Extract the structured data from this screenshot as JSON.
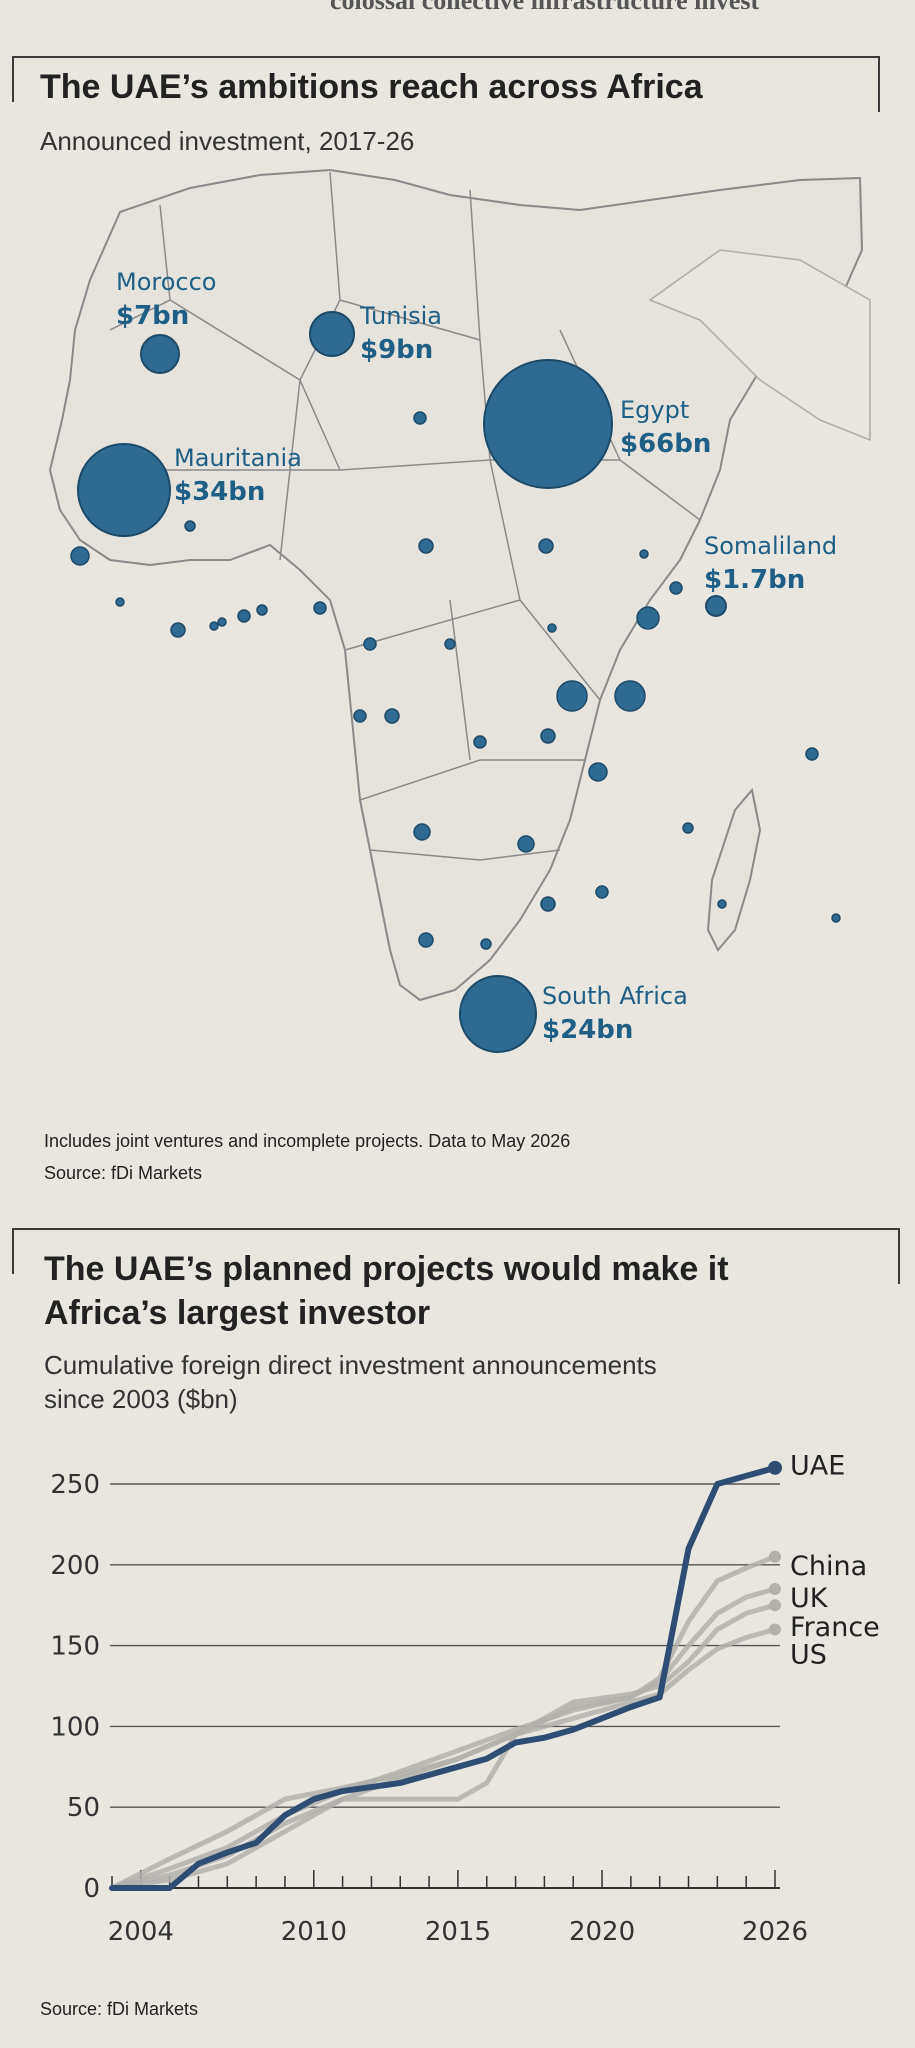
{
  "top_fragment": "colossal collective infrastructure invest",
  "map_chart": {
    "title": "The UAE’s ambitions reach across Africa",
    "subtitle": "Announced investment, 2017-26",
    "labelled_countries": [
      {
        "name": "Morocco",
        "amount": "$7bn",
        "value": 7
      },
      {
        "name": "Tunisia",
        "amount": "$9bn",
        "value": 9
      },
      {
        "name": "Mauritania",
        "amount": "$34bn",
        "value": 34
      },
      {
        "name": "Egypt",
        "amount": "$66bn",
        "value": 66
      },
      {
        "name": "Somaliland",
        "amount": "$1.7bn",
        "value": 1.7
      },
      {
        "name": "South Africa",
        "amount": "$24bn",
        "value": 24
      }
    ],
    "note": "Includes joint ventures and incomplete projects. Data to May 2026",
    "source": "Source: fDi Markets"
  },
  "chart_data": {
    "type": "line",
    "title": "The UAE’s planned projects would make it Africa’s largest investor",
    "title_lines": [
      "The UAE’s planned projects would make it",
      "Africa’s largest investor"
    ],
    "subtitle_lines": [
      "Cumulative foreign direct investment announcements",
      "since 2003 ($bn)"
    ],
    "xlabel": "",
    "ylabel": "",
    "xlim": [
      2003,
      2026
    ],
    "ylim": [
      0,
      250
    ],
    "x_ticks": [
      2004,
      2010,
      2015,
      2020,
      2026
    ],
    "y_ticks": [
      0,
      50,
      100,
      150,
      200,
      250
    ],
    "grid": true,
    "legend": "direct labels at line ends",
    "series": [
      {
        "name": "China",
        "color": "#b3b0ab",
        "x": [
          2003,
          2005,
          2007,
          2009,
          2011,
          2013,
          2015,
          2017,
          2019,
          2021,
          2022,
          2023,
          2024,
          2025,
          2026
        ],
        "y": [
          0,
          12,
          25,
          45,
          60,
          72,
          85,
          98,
          110,
          118,
          130,
          165,
          190,
          198,
          205
        ]
      },
      {
        "name": "UK",
        "color": "#b3b0ab",
        "x": [
          2003,
          2005,
          2007,
          2009,
          2011,
          2013,
          2015,
          2017,
          2019,
          2021,
          2022,
          2023,
          2024,
          2025,
          2026
        ],
        "y": [
          0,
          18,
          35,
          55,
          62,
          70,
          80,
          95,
          112,
          118,
          128,
          150,
          170,
          180,
          185
        ]
      },
      {
        "name": "France",
        "color": "#b3b0ab",
        "x": [
          2003,
          2005,
          2007,
          2009,
          2011,
          2013,
          2015,
          2017,
          2019,
          2021,
          2022,
          2023,
          2024,
          2025,
          2026
        ],
        "y": [
          0,
          8,
          20,
          40,
          55,
          68,
          80,
          95,
          115,
          120,
          125,
          140,
          160,
          170,
          175
        ]
      },
      {
        "name": "US",
        "color": "#b3b0ab",
        "x": [
          2003,
          2005,
          2007,
          2009,
          2011,
          2013,
          2015,
          2016,
          2017,
          2019,
          2021,
          2022,
          2023,
          2024,
          2025,
          2026
        ],
        "y": [
          0,
          5,
          15,
          35,
          55,
          55,
          55,
          65,
          95,
          105,
          115,
          120,
          135,
          148,
          155,
          160
        ]
      },
      {
        "name": "UAE",
        "color": "#2f4d73",
        "x": [
          2003,
          2005,
          2006,
          2007,
          2008,
          2009,
          2010,
          2011,
          2013,
          2015,
          2016,
          2017,
          2018,
          2019,
          2020,
          2021,
          2022,
          2023,
          2024,
          2025,
          2026
        ],
        "y": [
          0,
          0,
          15,
          22,
          28,
          45,
          55,
          60,
          65,
          75,
          80,
          90,
          93,
          98,
          105,
          112,
          118,
          210,
          250,
          255,
          260
        ]
      }
    ],
    "source": "Source: fDi Markets"
  },
  "colors": {
    "background": "#e9e6df",
    "map_bubble": "#2e6a91",
    "map_land": "#e6e3dc",
    "map_border": "#8a8a8a",
    "uae_line": "#2f4d73",
    "other_lines": "#b3b0ab"
  }
}
